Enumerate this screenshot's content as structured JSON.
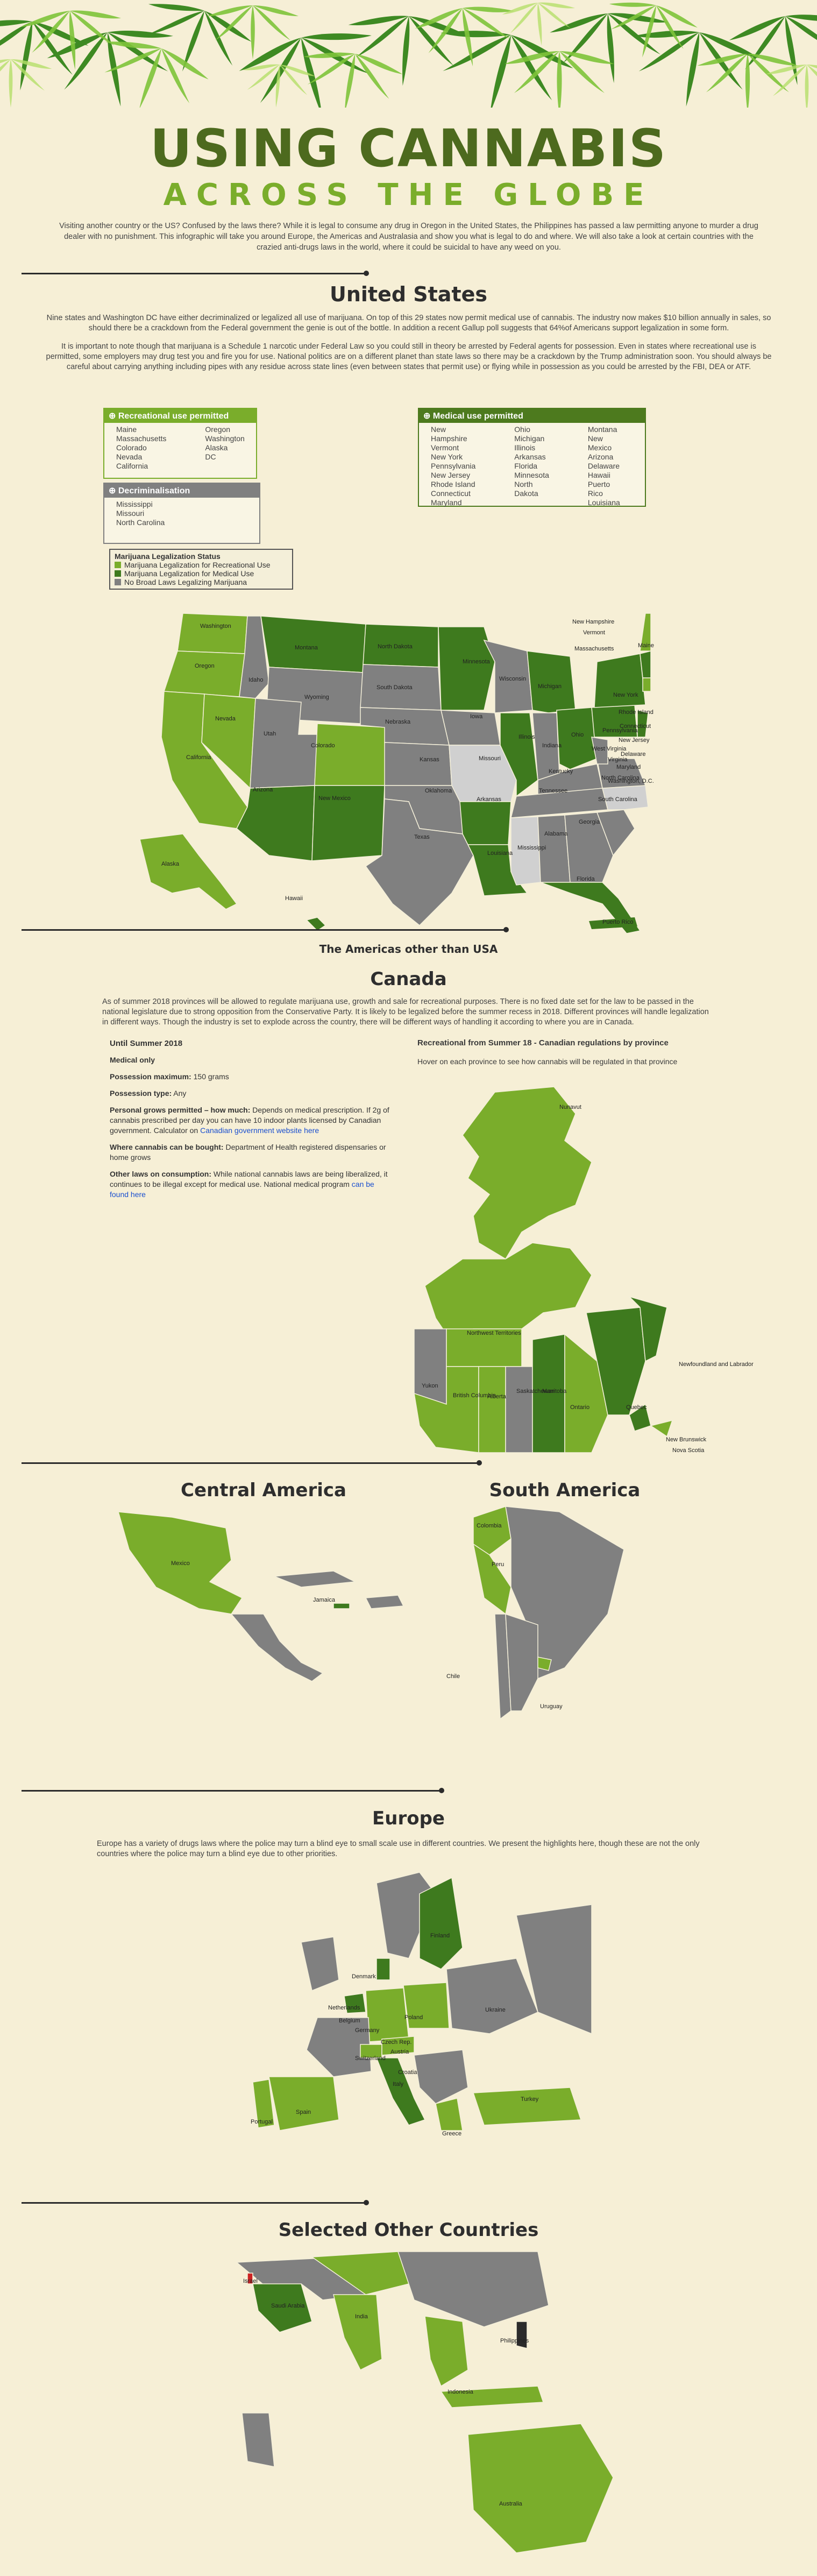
{
  "header": {
    "title": "USING CANNABIS",
    "subtitle": "ACROSS THE GLOBE",
    "intro": "Visiting another country or the US? Confused by the laws there? While it is legal to consume any drug in Oregon in the United States, the Philippines has passed a law permitting anyone to murder a drug dealer with no punishment. This infographic will take you around Europe, the Americas and Australasia and show you what is legal to do and where. We will also take a look at certain countries with the crazied anti-drugs laws in the world, where it could be suicidal to have any weed on you."
  },
  "us": {
    "title": "United States",
    "p1": "Nine states and Washington DC have either decriminalized or legalized all use of marijuana. On top of this 29 states now permit medical use of cannabis. The industry now makes $10 billion annually in sales, so should there be a crackdown from the Federal government the genie is out of the bottle. In addition a recent Gallup poll suggests that 64%of Americans support legalization in some form.",
    "p2": "It is important to note though that marijuana is a Schedule 1 narcotic under Federal Law so you could still in theory be arrested by Federal agents for possession. Even in states where recreational use is permitted, some employers may drug test you and fire you for use. National politics are on a different planet than state laws so there may be a crackdown by the Trump administration soon. You should always be careful about carrying anything including pipes with any residue across state lines (even between states that permit use) or flying while in possession as you could be arrested by the FBI, DEA or ATF.",
    "recreational": {
      "heading": "Recreational use permitted",
      "col1": [
        "Maine",
        "Massachusetts",
        "Colorado",
        "Nevada",
        "California"
      ],
      "col2": [
        "Oregon",
        "Washington",
        "Alaska",
        "DC"
      ]
    },
    "medical": {
      "heading": "Medical use permitted",
      "col1": [
        "New Hampshire",
        "Vermont",
        "New York",
        "Pennsylvania",
        "New Jersey",
        "Rhode Island",
        "Connecticut",
        "Maryland"
      ],
      "col2": [
        "Ohio",
        "Michigan",
        "Illinois",
        "Arkansas",
        "Florida",
        "Minnesota",
        "North Dakota"
      ],
      "col3": [
        "Montana",
        "New Mexico",
        "Arizona",
        "Delaware",
        "Hawaii",
        "Puerto Rico",
        "Louisiana"
      ]
    },
    "decrim": {
      "heading": "Decriminalisation",
      "items": [
        "Mississippi",
        "Missouri",
        "North Carolina"
      ]
    },
    "legend": {
      "title": "Marijuana Legalization Status",
      "items": [
        {
          "label": "Marijuana Legalization for Recreational Use",
          "color": "#7aad2b"
        },
        {
          "label": "Marijuana Legalization for Medical Use",
          "color": "#3e7a1e"
        },
        {
          "label": "No Broad Laws Legalizing Marijuana",
          "color": "#808080"
        }
      ]
    },
    "map_labels": {
      "washington": "Washington",
      "oregon": "Oregon",
      "california": "California",
      "nevada": "Nevada",
      "idaho": "Idaho",
      "montana": "Montana",
      "wyoming": "Wyoming",
      "utah": "Utah",
      "colorado": "Colorado",
      "arizona": "Arizona",
      "new_mexico": "New Mexico",
      "north_dakota": "North Dakota",
      "south_dakota": "South Dakota",
      "nebraska": "Nebraska",
      "kansas": "Kansas",
      "oklahoma": "Oklahoma",
      "texas": "Texas",
      "minnesota": "Minnesota",
      "iowa": "Iowa",
      "missouri": "Missouri",
      "arkansas": "Arkansas",
      "louisiana": "Louisiana",
      "wisconsin": "Wisconsin",
      "illinois": "Illinois",
      "michigan": "Michigan",
      "indiana": "Indiana",
      "ohio": "Ohio",
      "kentucky": "Kentucky",
      "tennessee": "Tennessee",
      "mississippi": "Mississippi",
      "alabama": "Alabama",
      "georgia": "Georgia",
      "florida": "Florida",
      "south_carolina": "South Carolina",
      "north_carolina": "North Carolina",
      "virginia": "Virginia",
      "west_virginia": "West Virginia",
      "pennsylvania": "Pennsylvania",
      "new_york": "New York",
      "maine": "Maine",
      "alaska": "Alaska",
      "hawaii": "Hawaii",
      "puerto_rico": "Puerto Rico",
      "new_hampshire": "New Hampshire",
      "vermont": "Vermont",
      "massachusetts": "Massachusetts",
      "rhode_island": "Rhode Island",
      "connecticut": "Connecticut",
      "new_jersey": "New Jersey",
      "delaware": "Delaware",
      "maryland": "Maryland",
      "washington_dc": "Washington, D.C."
    }
  },
  "americas": {
    "title": "The Americas other than USA"
  },
  "canada": {
    "title": "Canada",
    "intro": "As of summer 2018 provinces will be allowed to regulate marijuana use, growth and sale for recreational purposes. There is no fixed date set for the law to be passed in the national legislature due to strong opposition from the Conservative Party. It is likely to be legalized before the summer recess in 2018. Different provinces will handle legalization in different ways. Though the industry is set to explode across the country, there will be different ways of handling it according to where you are in Canada.",
    "left_title": "Until Summer 2018",
    "medical_only": "Medical only",
    "poss_max_label": "Possession maximum:",
    "poss_max_value": "150 grams",
    "poss_type_label": "Possession type:",
    "poss_type_value": "Any",
    "grow_label": "Personal grows permitted – how much:",
    "grow_value": "Depends on medical prescription. If 2g of cannabis prescribed per day you can have 10 indoor plants licensed by Canadian government. Calculator on",
    "grow_link": "Canadian government website here",
    "bought_label": "Where cannabis can be bought:",
    "bought_value": "Department of Health registered dispensaries or home grows",
    "other_label": "Other laws on consumption:",
    "other_value": "While national cannabis laws are being liberalized, it continues to be illegal except for medical use. National medical program",
    "other_link": "can be found here",
    "right_title": "Recreational from Summer 18 - Canadian regulations by province",
    "right_sub": "Hover on each province to see how cannabis will be regulated in that province",
    "map_labels": {
      "nunavut": "Nunavut",
      "yukon": "Yukon",
      "nwt": "Northwest Territories",
      "bc": "British Columbia",
      "alberta": "Alberta",
      "sask": "Saskatchewan",
      "manitoba": "Manitoba",
      "ontario": "Ontario",
      "quebec": "Quebec",
      "nfl": "Newfoundland and Labrador",
      "nb": "New Brunswick",
      "ns": "Nova Scotia"
    }
  },
  "central": {
    "title": "Central America",
    "labels": {
      "mexico": "Mexico",
      "jamaica": "Jamaica"
    }
  },
  "south": {
    "title": "South America",
    "labels": {
      "colombia": "Colombia",
      "peru": "Peru",
      "chile": "Chile",
      "uruguay": "Uruguay"
    }
  },
  "europe": {
    "title": "Europe",
    "intro": "Europe has a variety of drugs laws where the police may turn a blind eye to small scale use in different countries. We present the highlights here, though these are not the only countries where the police may turn a blind eye due to other priorities.",
    "labels": {
      "finland": "Finland",
      "denmark": "Denmark",
      "netherlands": "Netherlands",
      "germany": "Germany",
      "poland": "Poland",
      "czech": "Czech Rep.",
      "switzerland": "Switzerland",
      "austria": "Austria",
      "italy": "Italy",
      "spain": "Spain",
      "portugal": "Portugal",
      "greece": "Greece",
      "turkey": "Turkey",
      "croatia": "Croatia",
      "ukraine": "Ukraine",
      "belgium": "Belgium"
    }
  },
  "other": {
    "title": "Selected Other Countries",
    "labels": {
      "israel": "Israel",
      "saudi": "Saudi Arabia",
      "india": "India",
      "philippines": "Philippines",
      "indonesia": "Indonesia",
      "australia": "Australia"
    }
  },
  "colors": {
    "recreational": "#7aad2b",
    "medical": "#3e7a1e",
    "none": "#808080",
    "decrim": "#cfcfcf",
    "title_green": "#4d6a1e"
  }
}
